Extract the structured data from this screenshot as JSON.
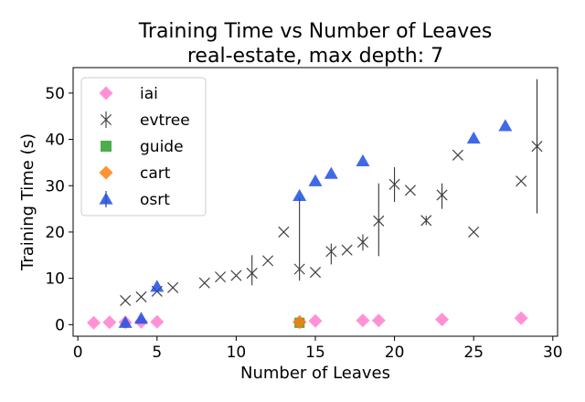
{
  "chart_data": {
    "type": "scatter",
    "title": "Training Time vs Number of Leaves",
    "subtitle": "real-estate, max depth: 7",
    "xlabel": "Number of Leaves",
    "ylabel": "Training Time (s)",
    "xlim": [
      -0.3,
      30.3
    ],
    "ylim": [
      -2.5,
      55.5
    ],
    "xticks": [
      0,
      5,
      10,
      15,
      20,
      25,
      30
    ],
    "yticks": [
      0,
      10,
      20,
      30,
      40,
      50
    ],
    "legend_position": "top-left",
    "series": [
      {
        "name": "iai",
        "marker": "diamond",
        "color": "#ff7fcf",
        "points": [
          [
            1,
            0.4
          ],
          [
            2,
            0.5
          ],
          [
            3,
            0.5
          ],
          [
            4,
            0.6
          ],
          [
            5,
            0.6
          ],
          [
            14,
            0.6
          ],
          [
            15,
            0.8
          ],
          [
            18,
            0.9
          ],
          [
            19,
            0.9
          ],
          [
            23,
            1.1
          ],
          [
            28,
            1.4
          ]
        ]
      },
      {
        "name": "evtree",
        "marker": "x",
        "color": "#404040",
        "points": [
          [
            3,
            5.2
          ],
          [
            4,
            6.0
          ],
          [
            5,
            7.2
          ],
          [
            6,
            8.0
          ],
          [
            8,
            9.0
          ],
          [
            9,
            10.3
          ],
          [
            10,
            10.6
          ],
          [
            11,
            11.1
          ],
          [
            12,
            13.8
          ],
          [
            13,
            20.0
          ],
          [
            14,
            12.0
          ],
          [
            15,
            11.3
          ],
          [
            16,
            15.8
          ],
          [
            17,
            16.1
          ],
          [
            18,
            17.8
          ],
          [
            19,
            22.4
          ],
          [
            20,
            30.3
          ],
          [
            21,
            29.0
          ],
          [
            22,
            22.5
          ],
          [
            23,
            28.0
          ],
          [
            24,
            36.6
          ],
          [
            25,
            20.0
          ],
          [
            28,
            31.0
          ],
          [
            29,
            38.5
          ]
        ],
        "errors": [
          [
            11,
            8.5,
            15.0
          ],
          [
            14,
            9.5,
            27.5
          ],
          [
            16,
            13.0,
            17.5
          ],
          [
            18,
            16.0,
            19.5
          ],
          [
            19,
            14.8,
            30.5
          ],
          [
            20,
            26.5,
            34.0
          ],
          [
            22,
            21.5,
            23.5
          ],
          [
            23,
            25.0,
            30.5
          ],
          [
            29,
            24.0,
            53.0
          ]
        ]
      },
      {
        "name": "guide",
        "marker": "square",
        "color": "#2ca02c",
        "points": [
          [
            14,
            0.4
          ]
        ]
      },
      {
        "name": "cart",
        "marker": "diamond",
        "color": "#ff7f0e",
        "points": [
          [
            14,
            0.5
          ]
        ]
      },
      {
        "name": "osrt",
        "marker": "triangle",
        "color": "#1f4fe0",
        "points": [
          [
            3,
            0.4
          ],
          [
            4,
            1.3
          ],
          [
            5,
            8.2
          ],
          [
            14,
            27.8
          ],
          [
            15,
            31.0
          ],
          [
            16,
            32.6
          ],
          [
            18,
            35.3
          ],
          [
            25,
            40.2
          ],
          [
            27,
            42.9
          ]
        ]
      }
    ]
  }
}
